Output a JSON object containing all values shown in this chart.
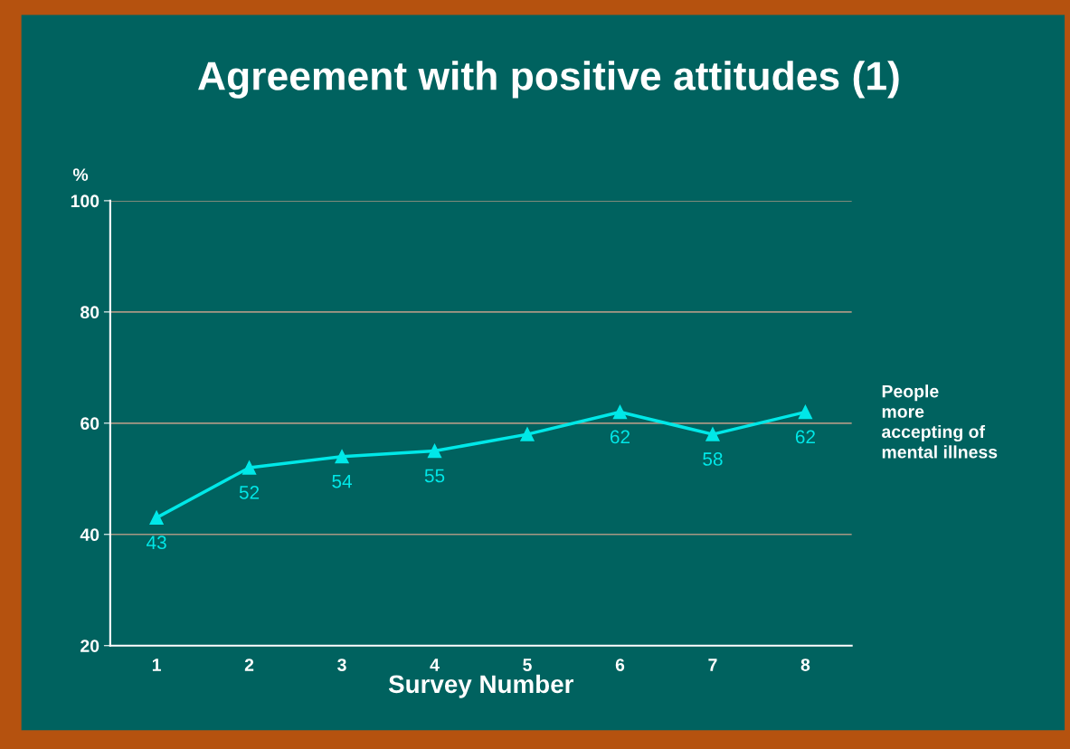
{
  "chart_data": {
    "type": "line",
    "title": "Agreement with positive attitudes (1)",
    "xlabel": "Survey Number",
    "ylabel": "%",
    "categories": [
      "1",
      "2",
      "3",
      "4",
      "5",
      "6",
      "7",
      "8"
    ],
    "series": [
      {
        "name": "People more accepting of mental illness",
        "color": "#00e8e8",
        "values": [
          43,
          52,
          54,
          55,
          58,
          62,
          58,
          62
        ],
        "value_labels": [
          "43",
          "52",
          "54",
          "55",
          null,
          "62",
          "58",
          "62"
        ]
      }
    ],
    "ylim": [
      20,
      100
    ],
    "yticks": [
      20,
      40,
      60,
      80,
      100
    ],
    "grid": "y",
    "marker": "triangle",
    "line_style": "solid"
  }
}
